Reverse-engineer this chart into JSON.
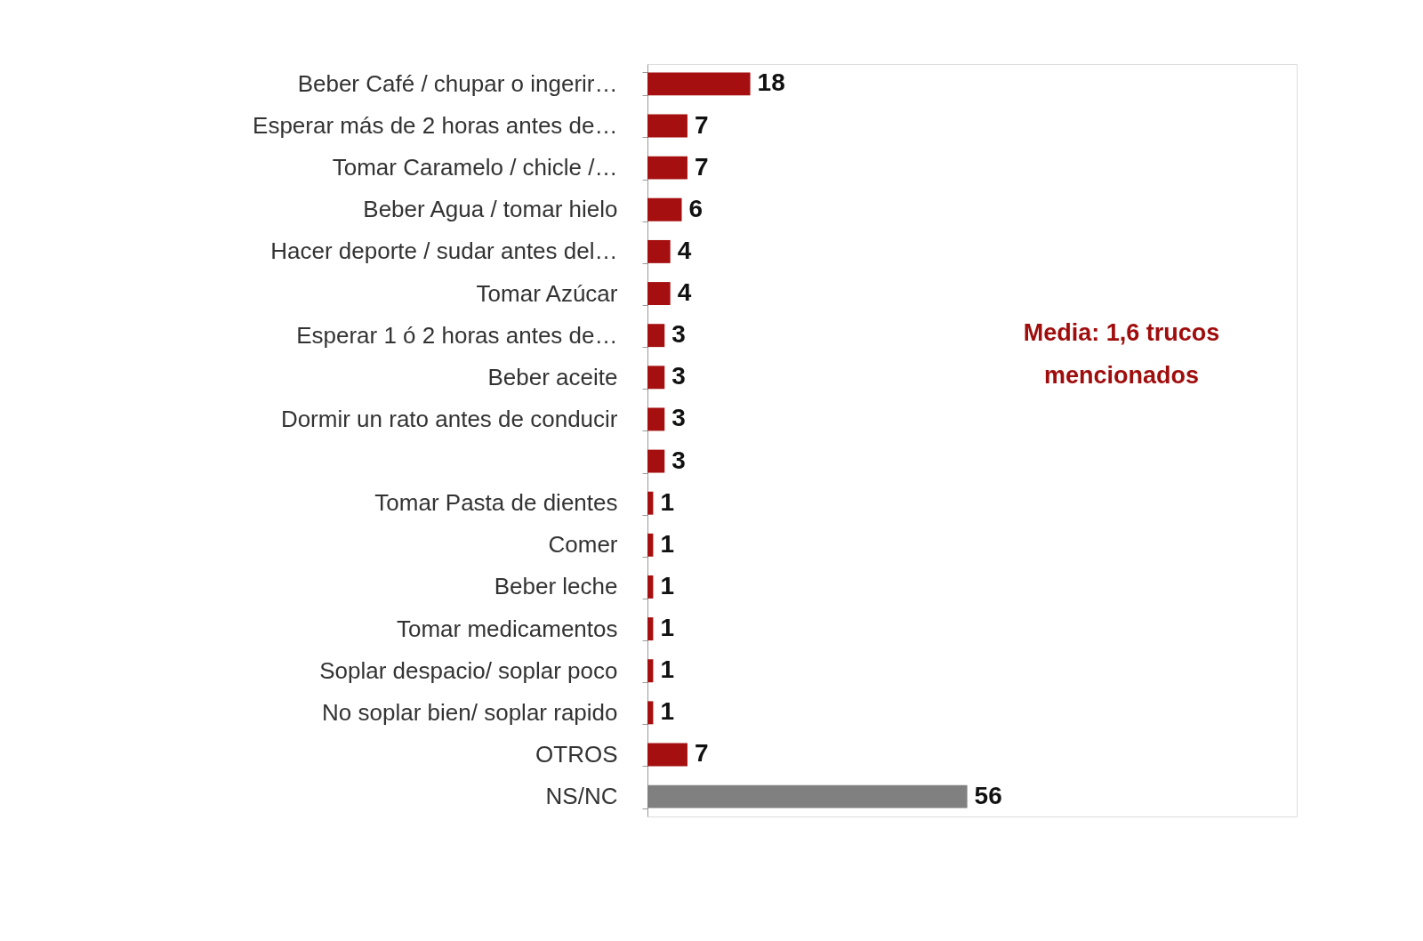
{
  "chart_data": {
    "type": "bar",
    "orientation": "horizontal",
    "data_labels": true,
    "categories": [
      "Beber Café / chupar o ingerir…",
      "Esperar más de 2 horas antes de…",
      "Tomar Caramelo / chicle /…",
      "Beber Agua / tomar hielo",
      "Hacer deporte / sudar antes del…",
      "Tomar Azúcar",
      "Esperar 1 ó 2 horas antes de…",
      "Beber aceite",
      "Dormir un rato antes de conducir",
      null,
      "Tomar Pasta de dientes",
      "Comer",
      "Beber leche",
      "Tomar medicamentos",
      "Soplar despacio/ soplar poco",
      "No soplar bien/ soplar rapido",
      "OTROS",
      "NS/NC"
    ],
    "values": [
      18,
      7,
      7,
      6,
      4,
      4,
      3,
      3,
      3,
      3,
      1,
      1,
      1,
      1,
      1,
      1,
      7,
      56
    ],
    "colors": [
      "#a50f0f",
      "#a50f0f",
      "#a50f0f",
      "#a50f0f",
      "#a50f0f",
      "#a50f0f",
      "#a50f0f",
      "#a50f0f",
      "#a50f0f",
      "#a50f0f",
      "#a50f0f",
      "#a50f0f",
      "#a50f0f",
      "#a50f0f",
      "#a50f0f",
      "#a50f0f",
      "#a50f0f",
      "#808080"
    ],
    "annotations": [
      "Media: 1,6 trucos mencionados"
    ]
  }
}
